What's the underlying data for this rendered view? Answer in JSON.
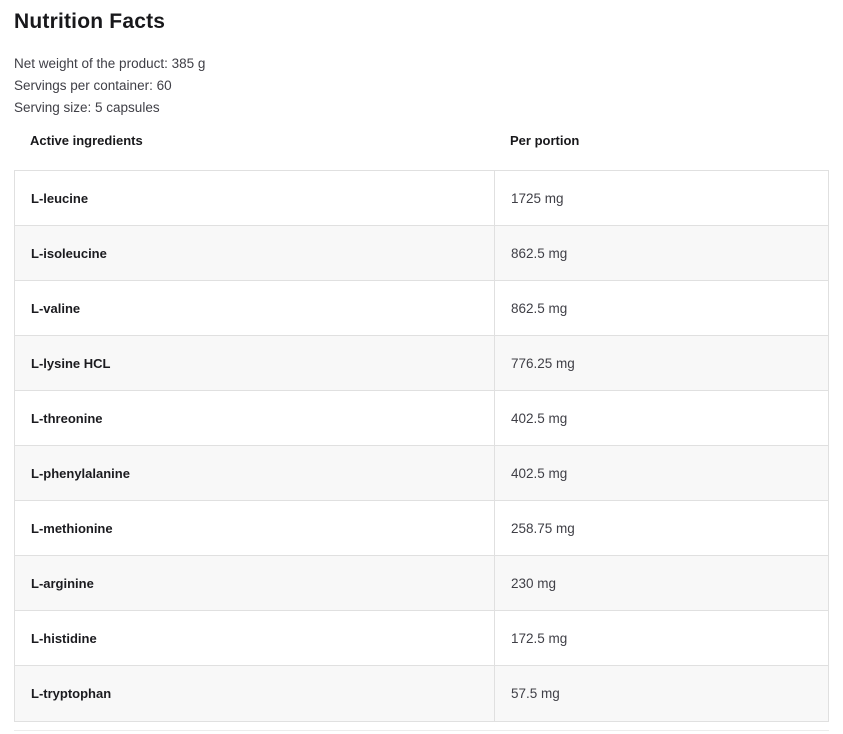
{
  "page": {
    "title": "Nutrition Facts",
    "meta": [
      "Net weight of the product: 385 g",
      "Servings per container: 60",
      "Serving size: 5 capsules"
    ]
  },
  "table": {
    "columns": [
      "Active ingredients",
      "Per portion"
    ],
    "rows": [
      {
        "ingredient": "L-leucine",
        "amount": "1725 mg"
      },
      {
        "ingredient": "L-isoleucine",
        "amount": "862.5 mg"
      },
      {
        "ingredient": "L-valine",
        "amount": "862.5 mg"
      },
      {
        "ingredient": "L-lysine HCL",
        "amount": "776.25 mg"
      },
      {
        "ingredient": "L-threonine",
        "amount": "402.5 mg"
      },
      {
        "ingredient": "L-phenylalanine",
        "amount": "402.5 mg"
      },
      {
        "ingredient": "L-methionine",
        "amount": "258.75 mg"
      },
      {
        "ingredient": "L-arginine",
        "amount": "230 mg"
      },
      {
        "ingredient": "L-histidine",
        "amount": "172.5 mg"
      },
      {
        "ingredient": "L-tryptophan",
        "amount": "57.5 mg"
      }
    ]
  },
  "colors": {
    "text_primary": "#18181b",
    "text_secondary": "#3f3f46",
    "border": "#e0e0e0",
    "row_alt_bg": "#f8f8f8"
  }
}
